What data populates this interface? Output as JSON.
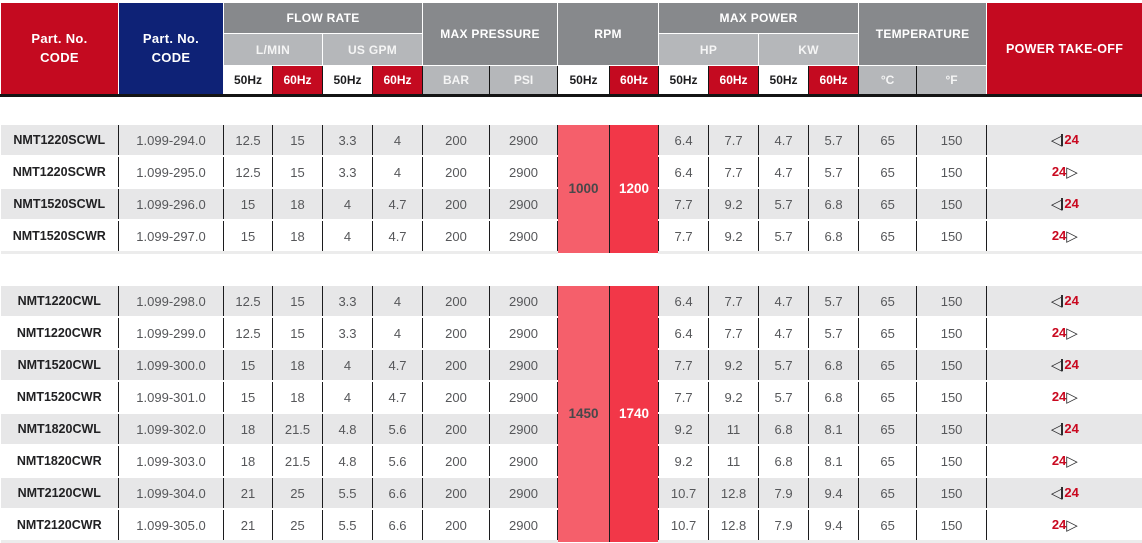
{
  "colors": {
    "brand_red": "#c40a20",
    "brand_blue": "#0e2276",
    "header_dark_gray": "#87898c",
    "header_light_gray": "#b5b7ba",
    "row_stripe_gray": "#e7e7e8",
    "rpm_50hz_pink": "#f55f6b",
    "rpm_60hz_red": "#f23748",
    "pto_number_red": "#c9081f"
  },
  "header": {
    "part_no_code": "Part. No.\nCODE",
    "flow_rate": "FLOW RATE",
    "l_min": "L/MIN",
    "us_gpm": "US GPM",
    "max_pressure": "MAX PRESSURE",
    "bar": "BAR",
    "psi": "PSI",
    "rpm": "RPM",
    "max_power": "MAX POWER",
    "hp": "HP",
    "kw": "KW",
    "temperature": "TEMPERATURE",
    "celsius": "°C",
    "fahrenheit": "°F",
    "power_take_off": "POWER TAKE-OFF",
    "hz50": "50Hz",
    "hz60": "60Hz"
  },
  "glyphs": {
    "triangle_left": "◁",
    "triangle_right": "▷"
  },
  "groups": [
    {
      "rpm_50hz": "1000",
      "rpm_60hz": "1200",
      "rows": [
        {
          "model": "NMT1220SCWL",
          "code": "1.099-294.0",
          "lmin_50": "12.5",
          "lmin_60": "15",
          "gpm_50": "3.3",
          "gpm_60": "4",
          "bar": "200",
          "psi": "2900",
          "hp_50": "6.4",
          "hp_60": "7.7",
          "kw_50": "4.7",
          "kw_60": "5.7",
          "temp_c": "65",
          "temp_f": "150",
          "pto_value": "24",
          "pto_dir": "left"
        },
        {
          "model": "NMT1220SCWR",
          "code": "1.099-295.0",
          "lmin_50": "12.5",
          "lmin_60": "15",
          "gpm_50": "3.3",
          "gpm_60": "4",
          "bar": "200",
          "psi": "2900",
          "hp_50": "6.4",
          "hp_60": "7.7",
          "kw_50": "4.7",
          "kw_60": "5.7",
          "temp_c": "65",
          "temp_f": "150",
          "pto_value": "24",
          "pto_dir": "right"
        },
        {
          "model": "NMT1520SCWL",
          "code": "1.099-296.0",
          "lmin_50": "15",
          "lmin_60": "18",
          "gpm_50": "4",
          "gpm_60": "4.7",
          "bar": "200",
          "psi": "2900",
          "hp_50": "7.7",
          "hp_60": "9.2",
          "kw_50": "5.7",
          "kw_60": "6.8",
          "temp_c": "65",
          "temp_f": "150",
          "pto_value": "24",
          "pto_dir": "left"
        },
        {
          "model": "NMT1520SCWR",
          "code": "1.099-297.0",
          "lmin_50": "15",
          "lmin_60": "18",
          "gpm_50": "4",
          "gpm_60": "4.7",
          "bar": "200",
          "psi": "2900",
          "hp_50": "7.7",
          "hp_60": "9.2",
          "kw_50": "5.7",
          "kw_60": "6.8",
          "temp_c": "65",
          "temp_f": "150",
          "pto_value": "24",
          "pto_dir": "right"
        }
      ]
    },
    {
      "rpm_50hz": "1450",
      "rpm_60hz": "1740",
      "rows": [
        {
          "model": "NMT1220CWL",
          "code": "1.099-298.0",
          "lmin_50": "12.5",
          "lmin_60": "15",
          "gpm_50": "3.3",
          "gpm_60": "4",
          "bar": "200",
          "psi": "2900",
          "hp_50": "6.4",
          "hp_60": "7.7",
          "kw_50": "4.7",
          "kw_60": "5.7",
          "temp_c": "65",
          "temp_f": "150",
          "pto_value": "24",
          "pto_dir": "left"
        },
        {
          "model": "NMT1220CWR",
          "code": "1.099-299.0",
          "lmin_50": "12.5",
          "lmin_60": "15",
          "gpm_50": "3.3",
          "gpm_60": "4",
          "bar": "200",
          "psi": "2900",
          "hp_50": "6.4",
          "hp_60": "7.7",
          "kw_50": "4.7",
          "kw_60": "5.7",
          "temp_c": "65",
          "temp_f": "150",
          "pto_value": "24",
          "pto_dir": "right"
        },
        {
          "model": "NMT1520CWL",
          "code": "1.099-300.0",
          "lmin_50": "15",
          "lmin_60": "18",
          "gpm_50": "4",
          "gpm_60": "4.7",
          "bar": "200",
          "psi": "2900",
          "hp_50": "7.7",
          "hp_60": "9.2",
          "kw_50": "5.7",
          "kw_60": "6.8",
          "temp_c": "65",
          "temp_f": "150",
          "pto_value": "24",
          "pto_dir": "left"
        },
        {
          "model": "NMT1520CWR",
          "code": "1.099-301.0",
          "lmin_50": "15",
          "lmin_60": "18",
          "gpm_50": "4",
          "gpm_60": "4.7",
          "bar": "200",
          "psi": "2900",
          "hp_50": "7.7",
          "hp_60": "9.2",
          "kw_50": "5.7",
          "kw_60": "6.8",
          "temp_c": "65",
          "temp_f": "150",
          "pto_value": "24",
          "pto_dir": "right"
        },
        {
          "model": "NMT1820CWL",
          "code": "1.099-302.0",
          "lmin_50": "18",
          "lmin_60": "21.5",
          "gpm_50": "4.8",
          "gpm_60": "5.6",
          "bar": "200",
          "psi": "2900",
          "hp_50": "9.2",
          "hp_60": "11",
          "kw_50": "6.8",
          "kw_60": "8.1",
          "temp_c": "65",
          "temp_f": "150",
          "pto_value": "24",
          "pto_dir": "left"
        },
        {
          "model": "NMT1820CWR",
          "code": "1.099-303.0",
          "lmin_50": "18",
          "lmin_60": "21.5",
          "gpm_50": "4.8",
          "gpm_60": "5.6",
          "bar": "200",
          "psi": "2900",
          "hp_50": "9.2",
          "hp_60": "11",
          "kw_50": "6.8",
          "kw_60": "8.1",
          "temp_c": "65",
          "temp_f": "150",
          "pto_value": "24",
          "pto_dir": "right"
        },
        {
          "model": "NMT2120CWL",
          "code": "1.099-304.0",
          "lmin_50": "21",
          "lmin_60": "25",
          "gpm_50": "5.5",
          "gpm_60": "6.6",
          "bar": "200",
          "psi": "2900",
          "hp_50": "10.7",
          "hp_60": "12.8",
          "kw_50": "7.9",
          "kw_60": "9.4",
          "temp_c": "65",
          "temp_f": "150",
          "pto_value": "24",
          "pto_dir": "left"
        },
        {
          "model": "NMT2120CWR",
          "code": "1.099-305.0",
          "lmin_50": "21",
          "lmin_60": "25",
          "gpm_50": "5.5",
          "gpm_60": "6.6",
          "bar": "200",
          "psi": "2900",
          "hp_50": "10.7",
          "hp_60": "12.8",
          "kw_50": "7.9",
          "kw_60": "9.4",
          "temp_c": "65",
          "temp_f": "150",
          "pto_value": "24",
          "pto_dir": "right"
        }
      ]
    }
  ]
}
